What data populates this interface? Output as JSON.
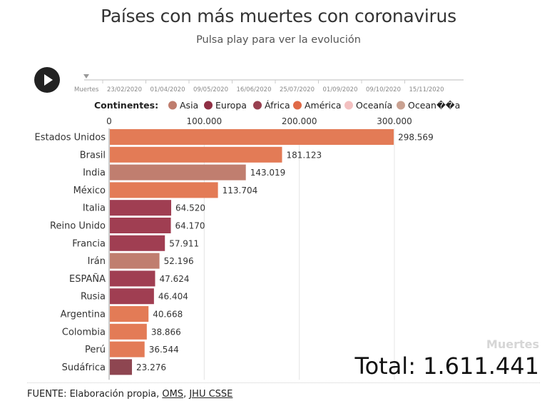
{
  "header": {
    "title": "Países con más muertes con coronavirus",
    "subtitle": "Pulsa play para ver la evolución"
  },
  "timeline": {
    "label": "Muertes",
    "dates": [
      "23/02/2020",
      "01/04/2020",
      "09/05/2020",
      "16/06/2020",
      "25/07/2020",
      "01/09/2020",
      "09/10/2020",
      "15/11/2020"
    ],
    "current": "Muertes"
  },
  "legend": {
    "title": "Continentes:",
    "items": [
      {
        "label": "Asia",
        "color": "#bf7d6e"
      },
      {
        "label": "Europa",
        "color": "#8f2f44"
      },
      {
        "label": "África",
        "color": "#984050"
      },
      {
        "label": "América",
        "color": "#e06a47"
      },
      {
        "label": "Oceanía",
        "color": "#f3c0c0"
      },
      {
        "label": "Ocean��a",
        "color": "#c9a191"
      }
    ]
  },
  "chart_data": {
    "type": "bar",
    "orientation": "horizontal",
    "categories": [
      "Estados Unidos",
      "Brasil",
      "India",
      "México",
      "Italia",
      "Reino Unido",
      "Francia",
      "Irán",
      "ESPAÑA",
      "Rusia",
      "Argentina",
      "Colombia",
      "Perú",
      "Sudáfrica"
    ],
    "values": [
      298569,
      181123,
      143019,
      113704,
      64520,
      64170,
      57911,
      52196,
      47624,
      46404,
      40668,
      38866,
      36544,
      23276
    ],
    "value_labels": [
      "298.569",
      "181.123",
      "143.019",
      "113.704",
      "64.520",
      "64.170",
      "57.911",
      "52.196",
      "47.624",
      "46.404",
      "40.668",
      "38.866",
      "36.544",
      "23.276"
    ],
    "continents": [
      "América",
      "América",
      "Asia",
      "América",
      "Europa",
      "Europa",
      "Europa",
      "Asia",
      "Europa",
      "Europa",
      "América",
      "América",
      "América",
      "África"
    ],
    "xlim": [
      0,
      310000
    ],
    "ticks": [
      0,
      100000,
      200000,
      300000
    ],
    "tick_labels": [
      "0",
      "100.000",
      "200.000",
      "300.000"
    ],
    "grid": true,
    "axis_position": "top",
    "colors": {
      "América": "#e37b56",
      "Asia": "#c07e6f",
      "Europa": "#a03e52",
      "África": "#8e4651"
    }
  },
  "overlay": {
    "metric_label": "Muertes",
    "total_label": "Total: 1.611.441"
  },
  "footer": {
    "prefix": "FUENTE: Elaboración propia, ",
    "link_oms": "OMS",
    "separator": ", ",
    "link_jhu": "JHU CSSE"
  }
}
